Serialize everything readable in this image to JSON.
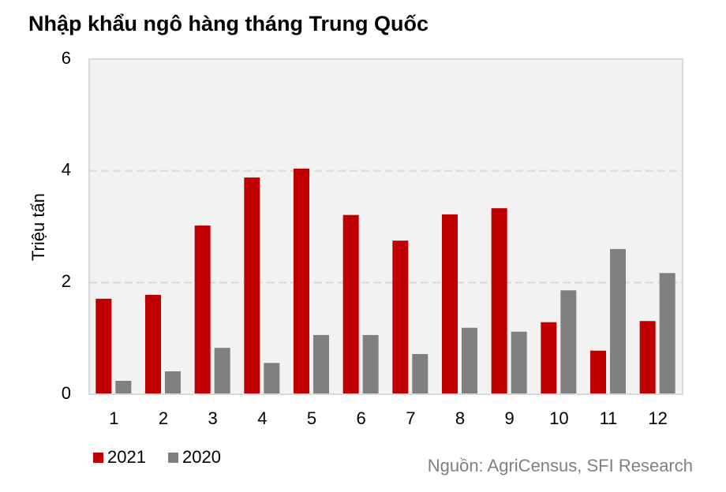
{
  "chart_data": {
    "type": "bar",
    "title": "Nhập khẩu ngô hàng tháng Trung Quốc",
    "y_label": "Triệu tấn",
    "source": "Nguồn: AgriCensus, SFI Research",
    "categories": [
      "1",
      "2",
      "3",
      "4",
      "5",
      "6",
      "7",
      "8",
      "9",
      "10",
      "11",
      "12"
    ],
    "series": [
      {
        "name": "2021",
        "color": "#c00000",
        "values": [
          1.71,
          1.78,
          3.02,
          3.88,
          4.04,
          3.21,
          2.75,
          3.22,
          3.33,
          1.29,
          0.78,
          1.31
        ]
      },
      {
        "name": "2020",
        "color": "#808080",
        "values": [
          0.24,
          0.41,
          0.83,
          0.56,
          1.06,
          1.06,
          0.72,
          1.19,
          1.12,
          1.86,
          2.6,
          2.17
        ]
      }
    ],
    "ylim": [
      0,
      6
    ],
    "yticks": [
      0,
      2,
      4,
      6
    ],
    "grid": true
  }
}
